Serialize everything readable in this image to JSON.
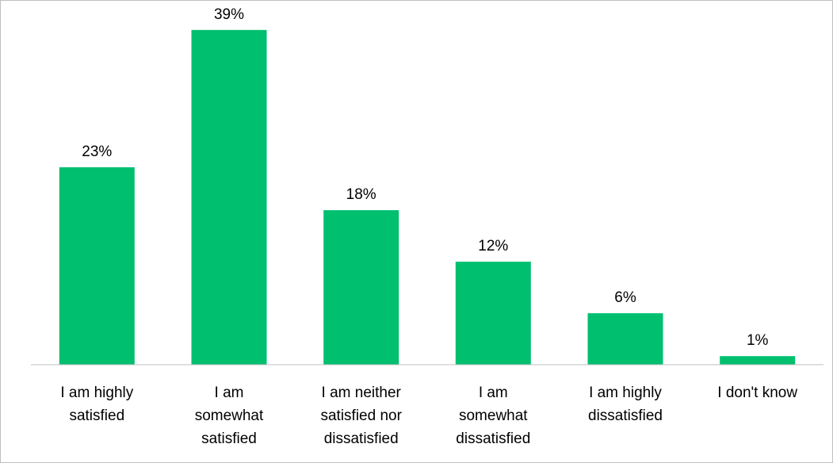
{
  "chart_data": {
    "type": "bar",
    "categories": [
      [
        "I am highly",
        "satisfied"
      ],
      [
        "I am",
        "somewhat",
        "satisfied"
      ],
      [
        "I am neither",
        "satisfied nor",
        "dissatisfied"
      ],
      [
        "I am",
        "somewhat",
        "dissatisfied"
      ],
      [
        "I am highly",
        "dissatisfied"
      ],
      [
        "I don't know"
      ]
    ],
    "values": [
      23,
      39,
      18,
      12,
      6,
      1
    ],
    "data_labels": [
      "23%",
      "39%",
      "18%",
      "12%",
      "6%",
      "1%"
    ],
    "ylim": [
      0,
      40
    ],
    "grid": false,
    "legend": "none",
    "bar_color": "#00BF6F",
    "axis_color": "#bfbfbf"
  }
}
